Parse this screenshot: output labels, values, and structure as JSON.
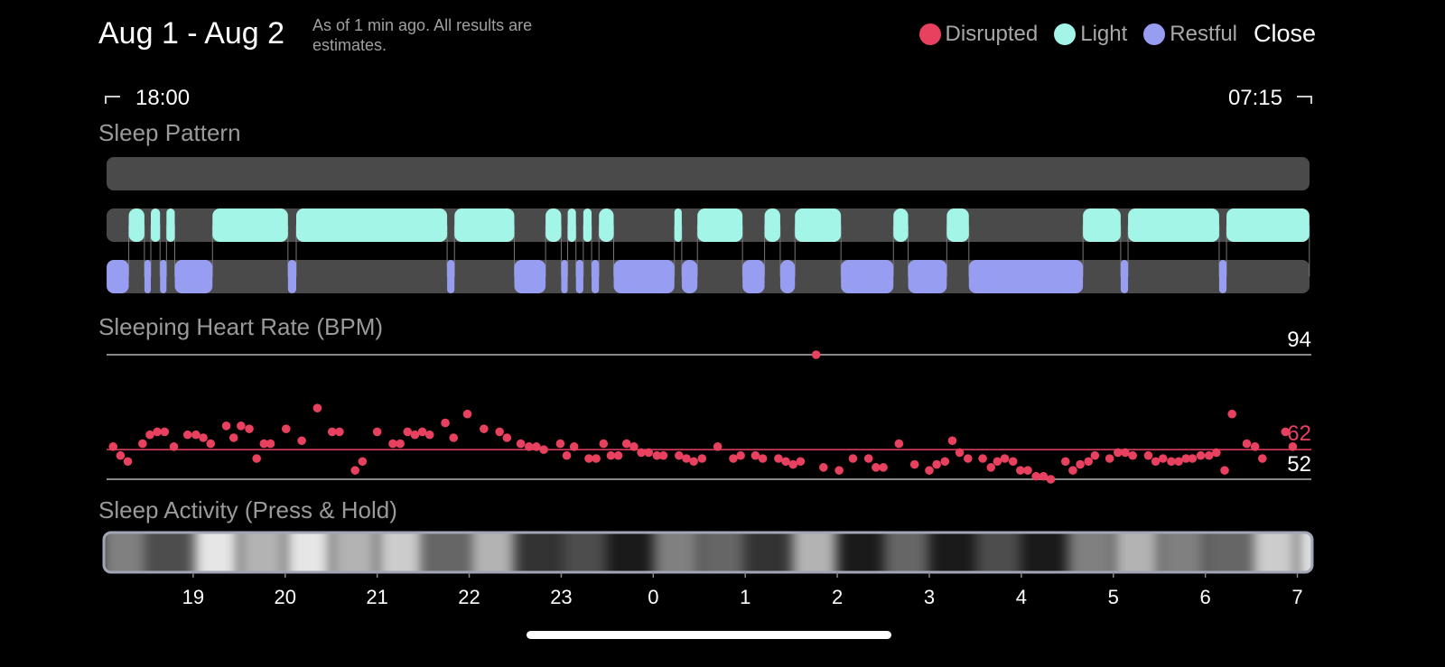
{
  "header": {
    "title": "Aug 1 - Aug 2",
    "note": "As of 1 min ago. All results are estimates.",
    "close": "Close"
  },
  "time_range": {
    "start": "18:00",
    "end": "07:15"
  },
  "chart_data": [
    {
      "type": "timeline",
      "title": "Sleep Pattern",
      "xlim": [
        18,
        31.25
      ],
      "series": [
        {
          "name": "Disrupted",
          "color": "#e8405f",
          "segments": []
        },
        {
          "name": "Light",
          "color": "#a3f5e8",
          "segments": [
            [
              18.3,
              18.47
            ],
            [
              18.54,
              18.64
            ],
            [
              18.71,
              18.8
            ],
            [
              19.21,
              20.03
            ],
            [
              20.12,
              21.76
            ],
            [
              21.84,
              22.49
            ],
            [
              22.83,
              23.0
            ],
            [
              23.07,
              23.16
            ],
            [
              23.24,
              23.33
            ],
            [
              23.41,
              23.57
            ],
            [
              24.23,
              24.31
            ],
            [
              24.48,
              24.97
            ],
            [
              25.21,
              25.38
            ],
            [
              25.54,
              26.04
            ],
            [
              26.61,
              26.77
            ],
            [
              27.19,
              27.43
            ],
            [
              28.67,
              29.08
            ],
            [
              29.16,
              30.15
            ],
            [
              30.23,
              31.13
            ]
          ]
        },
        {
          "name": "Restful",
          "color": "#979df0",
          "segments": [
            [
              18.06,
              18.3
            ],
            [
              18.47,
              18.54
            ],
            [
              18.64,
              18.71
            ],
            [
              18.8,
              19.21
            ],
            [
              20.03,
              20.12
            ],
            [
              21.76,
              21.84
            ],
            [
              22.49,
              22.83
            ],
            [
              23.0,
              23.07
            ],
            [
              23.16,
              23.24
            ],
            [
              23.33,
              23.41
            ],
            [
              23.57,
              24.23
            ],
            [
              24.31,
              24.48
            ],
            [
              24.97,
              25.21
            ],
            [
              25.38,
              25.54
            ],
            [
              26.04,
              26.61
            ],
            [
              26.77,
              27.19
            ],
            [
              27.43,
              28.67
            ],
            [
              29.08,
              29.16
            ],
            [
              30.15,
              30.23
            ]
          ]
        }
      ]
    },
    {
      "type": "scatter",
      "title": "Sleeping Heart Rate (BPM)",
      "color": "#e8405f",
      "xlim": [
        18,
        31.25
      ],
      "ylim": [
        52,
        94
      ],
      "yticks": [
        52,
        94
      ],
      "average": 62,
      "x": [
        18.13,
        18.21,
        18.29,
        18.45,
        18.53,
        18.61,
        18.69,
        18.79,
        18.94,
        19.03,
        19.11,
        19.19,
        19.36,
        19.44,
        19.52,
        19.61,
        19.69,
        19.77,
        19.84,
        20.01,
        20.18,
        20.35,
        20.51,
        20.59,
        20.76,
        20.84,
        21.0,
        21.17,
        21.25,
        21.33,
        21.41,
        21.49,
        21.57,
        21.74,
        21.83,
        21.98,
        22.16,
        22.33,
        22.41,
        22.56,
        22.65,
        22.73,
        22.81,
        22.99,
        23.06,
        23.14,
        23.3,
        23.38,
        23.46,
        23.54,
        23.62,
        23.71,
        23.79,
        23.87,
        23.95,
        24.04,
        24.11,
        24.28,
        24.36,
        24.44,
        24.53,
        24.7,
        24.87,
        24.95,
        25.11,
        25.19,
        25.36,
        25.44,
        25.52,
        25.6,
        25.77,
        25.85,
        26.02,
        26.17,
        26.34,
        26.42,
        26.5,
        26.67,
        26.84,
        27.0,
        27.08,
        27.17,
        27.25,
        27.33,
        27.42,
        27.58,
        27.67,
        27.74,
        27.82,
        27.91,
        27.99,
        28.07,
        28.16,
        28.24,
        28.32,
        28.48,
        28.56,
        28.64,
        28.73,
        28.8,
        28.96,
        29.05,
        29.13,
        29.21,
        29.38,
        29.46,
        29.54,
        29.63,
        29.71,
        29.79,
        29.86,
        29.95,
        30.04,
        30.12,
        30.21,
        30.29,
        30.45,
        30.54,
        30.62,
        30.87,
        30.95
      ],
      "values": [
        63,
        60,
        58,
        64,
        67,
        68,
        68,
        63,
        67,
        67,
        66,
        64,
        70,
        66,
        70,
        69,
        59,
        64,
        64,
        69,
        65,
        76,
        68,
        68,
        55,
        58,
        68,
        64,
        64,
        68,
        67,
        68,
        67,
        71,
        66,
        74,
        69,
        68,
        66,
        64,
        63,
        63,
        62,
        64,
        60,
        63,
        59,
        59,
        64,
        60,
        60,
        64,
        63,
        61,
        61,
        60,
        60,
        60,
        59,
        58,
        59,
        63,
        59,
        60,
        60,
        59,
        59,
        58,
        57,
        58,
        94,
        56,
        55,
        59,
        59,
        56,
        56,
        64,
        57,
        55,
        57,
        58,
        65,
        61,
        59,
        59,
        56,
        58,
        59,
        58,
        55,
        55,
        53,
        53,
        52,
        58,
        55,
        57,
        58,
        60,
        59,
        61,
        61,
        60,
        60,
        58,
        59,
        58,
        58,
        59,
        59,
        60,
        60,
        61,
        55,
        74,
        64,
        63,
        59,
        68,
        63
      ]
    },
    {
      "type": "heatstrip",
      "title": "Sleep Activity (Press & Hold)",
      "xlim": [
        18,
        31.25
      ],
      "bins": [
        18,
        18.5,
        19,
        19.5,
        20,
        20.5,
        21,
        21.5,
        22,
        22.5,
        23,
        23.5,
        24,
        24.5,
        25,
        25.5,
        26,
        26.5,
        27,
        27.5,
        28,
        28.5,
        29,
        29.5,
        30,
        30.5,
        31,
        31.25
      ],
      "values": [
        0.5,
        0.3,
        0.9,
        0.7,
        0.9,
        0.7,
        0.8,
        0.4,
        0.7,
        0.2,
        0.3,
        0.1,
        0.5,
        0.4,
        0.2,
        0.7,
        0.1,
        0.4,
        0.1,
        0.3,
        0.1,
        0.5,
        0.7,
        0.5,
        0.4,
        0.8,
        0.9
      ],
      "xticks": [
        19,
        20,
        21,
        22,
        23,
        {
          "value": 24,
          "label": "0"
        },
        {
          "value": 25,
          "label": "1"
        },
        {
          "value": 26,
          "label": "2"
        },
        {
          "value": 27,
          "label": "3"
        },
        {
          "value": 28,
          "label": "4"
        },
        {
          "value": 29,
          "label": "5"
        },
        {
          "value": 30,
          "label": "6"
        },
        {
          "value": 31,
          "label": "7"
        }
      ]
    }
  ]
}
